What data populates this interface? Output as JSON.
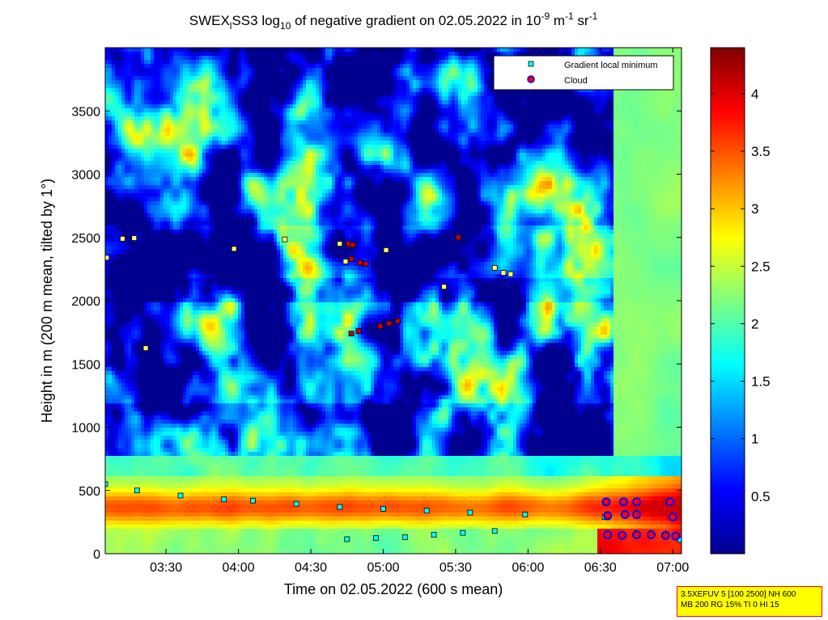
{
  "title": {
    "prefix": "SWEX",
    "prefix_sub": "l",
    "mid": "SS3 log",
    "log_sub": "10",
    "text": " of negative gradient on 02.05.2022 in 10",
    "exp1": "-9",
    "unit1": " m",
    "exp2": "-1",
    "unit2": " sr",
    "exp3": "-1"
  },
  "xlabel": "Time on 02.05.2022 (600 s mean)",
  "ylabel": "Height in m (200 m mean, tilted by 1°)",
  "info_box": [
    "3.5XEFUV 5 [100 2500] NH 600",
    "MB 200 RG 15% TI 0 HI 15"
  ],
  "chart_data": {
    "type": "heatmap",
    "x_range": [
      "03:05",
      "07:05"
    ],
    "ylim": [
      0,
      4000
    ],
    "x_ticks": [
      {
        "label": "03:30",
        "t": 3.5
      },
      {
        "label": "04:00",
        "t": 4.0
      },
      {
        "label": "04:30",
        "t": 4.5
      },
      {
        "label": "05:00",
        "t": 5.0
      },
      {
        "label": "05:30",
        "t": 5.5
      },
      {
        "label": "06:00",
        "t": 6.0
      },
      {
        "label": "06:30",
        "t": 6.5
      },
      {
        "label": "07:00",
        "t": 7.0
      }
    ],
    "y_ticks": [
      0,
      500,
      1000,
      1500,
      2000,
      2500,
      3000,
      3500
    ],
    "colorbar": {
      "range": [
        0,
        4.4
      ],
      "ticks": [
        "0.5",
        "1",
        "1.5",
        "2",
        "2.5",
        "3",
        "3.5",
        "4"
      ],
      "colormap": "jet"
    },
    "legend": {
      "position": "top-right",
      "entries": [
        "Gradient local minimum",
        "Cloud"
      ]
    },
    "series": [
      {
        "name": "Gradient local minimum",
        "color": "#00ffff",
        "points": [
          [
            3.09,
            2340
          ],
          [
            3.2,
            2490
          ],
          [
            3.28,
            2495
          ],
          [
            3.36,
            1625
          ],
          [
            3.97,
            2410
          ],
          [
            4.32,
            2485
          ],
          [
            4.7,
            2450
          ],
          [
            4.74,
            2310
          ],
          [
            4.78,
            2440
          ],
          [
            5.02,
            2400
          ],
          [
            5.42,
            2110
          ],
          [
            5.77,
            2260
          ],
          [
            5.88,
            2210
          ],
          [
            5.83,
            2220
          ],
          [
            3.08,
            550
          ],
          [
            3.3,
            500
          ],
          [
            3.6,
            460
          ],
          [
            3.9,
            430
          ],
          [
            4.1,
            420
          ],
          [
            4.4,
            395
          ],
          [
            4.7,
            370
          ],
          [
            5.0,
            355
          ],
          [
            5.3,
            340
          ],
          [
            5.6,
            325
          ],
          [
            5.98,
            310
          ],
          [
            4.75,
            115
          ],
          [
            4.95,
            125
          ],
          [
            5.15,
            130
          ],
          [
            5.35,
            150
          ],
          [
            5.55,
            165
          ],
          [
            5.77,
            180
          ],
          [
            6.53,
            290
          ],
          [
            7.05,
            110
          ]
        ]
      },
      {
        "name": "Cloud",
        "color": "#ff0000",
        "points": [
          [
            4.76,
            2450
          ],
          [
            4.79,
            2440
          ],
          [
            4.78,
            2330
          ],
          [
            4.84,
            2300
          ],
          [
            4.88,
            2290
          ],
          [
            4.78,
            1740
          ],
          [
            4.83,
            1760
          ],
          [
            4.98,
            1800
          ],
          [
            5.04,
            1820
          ],
          [
            5.1,
            1840
          ],
          [
            5.52,
            2500
          ],
          [
            6.54,
            410
          ],
          [
            6.66,
            410
          ],
          [
            6.75,
            410
          ],
          [
            6.98,
            410
          ],
          [
            6.55,
            300
          ],
          [
            6.67,
            310
          ],
          [
            6.75,
            310
          ],
          [
            7.0,
            290
          ],
          [
            6.55,
            150
          ],
          [
            6.65,
            145
          ],
          [
            6.75,
            150
          ],
          [
            6.85,
            150
          ],
          [
            6.95,
            145
          ],
          [
            7.02,
            140
          ]
        ]
      }
    ]
  }
}
